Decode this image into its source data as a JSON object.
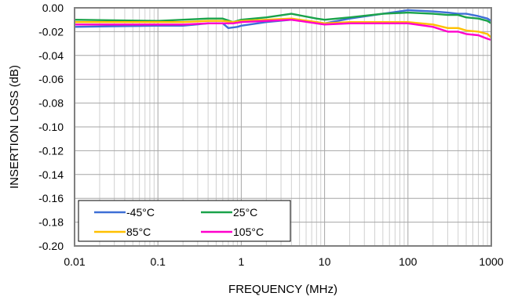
{
  "chart_data": {
    "type": "line",
    "title": "",
    "xlabel": "FREQUENCY (MHz)",
    "ylabel": "INSERTION LOSS (dB)",
    "x_scale": "log",
    "xlim": [
      0.01,
      1000
    ],
    "ylim": [
      -0.2,
      0.0
    ],
    "x_ticks": [
      "0.01",
      "0.1",
      "1",
      "10",
      "100",
      "1000"
    ],
    "y_ticks": [
      "0.00",
      "-0.02",
      "-0.04",
      "-0.06",
      "-0.08",
      "-0.10",
      "-0.12",
      "-0.14",
      "-0.16",
      "-0.18",
      "-0.20"
    ],
    "grid": true,
    "legend_position": "bottom-left",
    "series": [
      {
        "name": "-45°C",
        "color": "#3e6fd6",
        "x": [
          0.01,
          0.1,
          0.2,
          0.4,
          0.6,
          0.7,
          0.9,
          1,
          2,
          4,
          8,
          10,
          20,
          50,
          100,
          200,
          300,
          400,
          500,
          700,
          900,
          1000
        ],
        "y": [
          -0.016,
          -0.015,
          -0.015,
          -0.013,
          -0.013,
          -0.017,
          -0.016,
          -0.015,
          -0.012,
          -0.01,
          -0.012,
          -0.013,
          -0.009,
          -0.005,
          -0.002,
          -0.003,
          -0.004,
          -0.005,
          -0.005,
          -0.007,
          -0.009,
          -0.011
        ]
      },
      {
        "name": "25°C",
        "color": "#1aa34a",
        "x": [
          0.01,
          0.1,
          0.2,
          0.4,
          0.6,
          0.8,
          1,
          2,
          4,
          8,
          10,
          20,
          50,
          100,
          200,
          300,
          400,
          500,
          700,
          900,
          1000
        ],
        "y": [
          -0.01,
          -0.011,
          -0.01,
          -0.009,
          -0.009,
          -0.012,
          -0.01,
          -0.008,
          -0.005,
          -0.009,
          -0.01,
          -0.008,
          -0.005,
          -0.004,
          -0.005,
          -0.006,
          -0.006,
          -0.008,
          -0.009,
          -0.011,
          -0.013
        ]
      },
      {
        "name": "85°C",
        "color": "#ffc000",
        "x": [
          0.01,
          0.1,
          0.2,
          0.4,
          0.6,
          0.8,
          1,
          2,
          4,
          8,
          10,
          20,
          50,
          100,
          200,
          300,
          400,
          500,
          700,
          900,
          1000
        ],
        "y": [
          -0.012,
          -0.012,
          -0.012,
          -0.011,
          -0.011,
          -0.012,
          -0.011,
          -0.01,
          -0.009,
          -0.012,
          -0.013,
          -0.012,
          -0.012,
          -0.012,
          -0.014,
          -0.017,
          -0.017,
          -0.019,
          -0.02,
          -0.022,
          -0.025
        ]
      },
      {
        "name": "105°C",
        "color": "#ff00cc",
        "x": [
          0.01,
          0.1,
          0.2,
          0.4,
          0.6,
          0.8,
          1,
          2,
          4,
          8,
          10,
          20,
          50,
          100,
          200,
          300,
          400,
          500,
          700,
          900,
          1000
        ],
        "y": [
          -0.014,
          -0.014,
          -0.014,
          -0.013,
          -0.013,
          -0.013,
          -0.012,
          -0.011,
          -0.01,
          -0.013,
          -0.014,
          -0.013,
          -0.013,
          -0.013,
          -0.016,
          -0.02,
          -0.02,
          -0.022,
          -0.023,
          -0.026,
          -0.027
        ]
      }
    ]
  }
}
